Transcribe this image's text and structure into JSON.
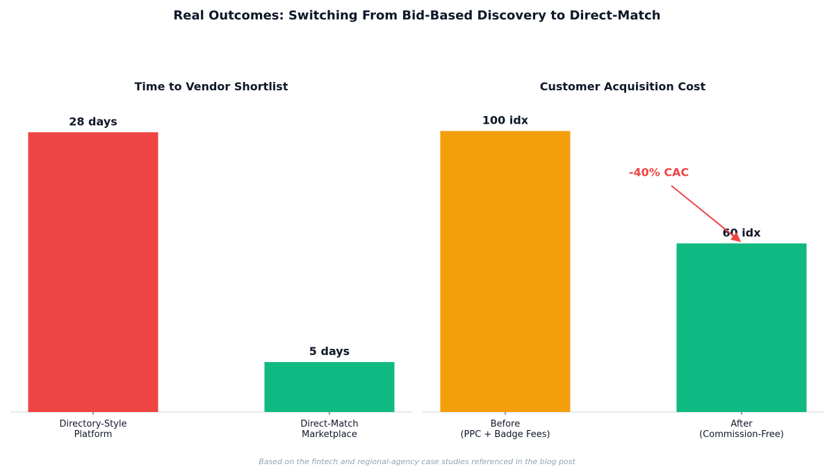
{
  "title": "Real Outcomes: Switching From Bid-Based Discovery to Direct-Match",
  "footnote": "Based on the fintech and regional-agency case studies referenced in the blog post",
  "colors": {
    "axis": "#cbd5e1",
    "text": "#0f172a",
    "footnote": "#94a3b8",
    "annotation": "#ef4444"
  },
  "chart_data": [
    {
      "type": "bar",
      "title": "Time to Vendor Shortlist",
      "categories": [
        [
          "Directory-Style",
          "Platform"
        ],
        [
          "Direct-Match",
          "Marketplace"
        ]
      ],
      "values": [
        28,
        5
      ],
      "value_labels": [
        "28 days",
        "5 days"
      ],
      "colors": [
        "#ef4444",
        "#10b981"
      ],
      "ylim": [
        0,
        31.5
      ],
      "xlabel": "",
      "ylabel": "",
      "grid": false
    },
    {
      "type": "bar",
      "title": "Customer Acquisition Cost",
      "categories": [
        [
          "Before",
          "(PPC + Badge Fees)"
        ],
        [
          "After",
          "(Commission-Free)"
        ]
      ],
      "values": [
        100,
        60
      ],
      "value_labels": [
        "100 idx",
        "60 idx"
      ],
      "colors": [
        "#f59e0b",
        "#10b981"
      ],
      "ylim": [
        0,
        112
      ],
      "xlabel": "",
      "ylabel": "",
      "grid": false,
      "annotation": {
        "text": "-40% CAC",
        "target_category_index": 1,
        "target_value": 60,
        "text_value": 84,
        "text_category_position": 0.65,
        "color": "#ef4444"
      }
    }
  ]
}
